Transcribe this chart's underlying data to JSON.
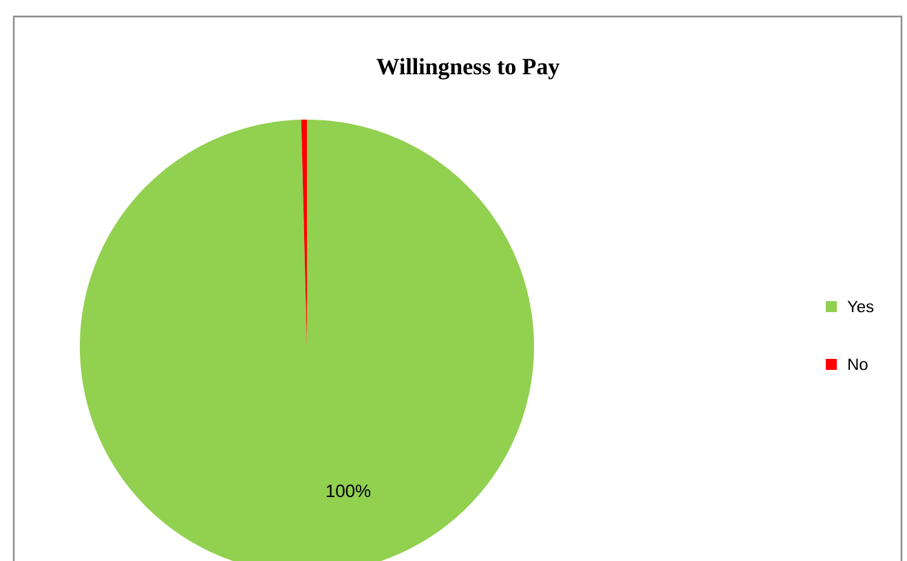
{
  "chart_data": {
    "type": "pie",
    "title": "Willingness to Pay",
    "categories": [
      "Yes",
      "No"
    ],
    "values": [
      99.6,
      0.4
    ],
    "colors": [
      "#92d050",
      "#ff0000"
    ],
    "value_labels": [
      "100%",
      null
    ],
    "legend": "right"
  }
}
